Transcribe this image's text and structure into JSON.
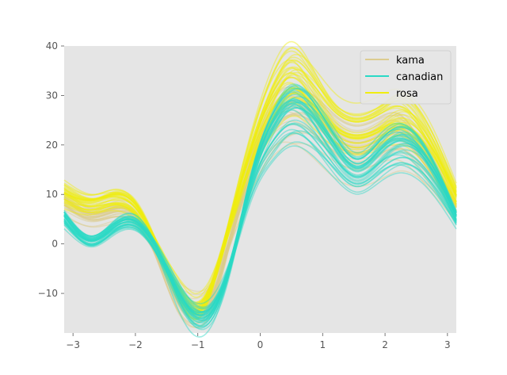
{
  "chart_data": {
    "type": "line",
    "description_kind": "andrews-curves",
    "xlim": [
      -3.14159,
      3.14159
    ],
    "ylim": [
      -18,
      40
    ],
    "x_ticks": [
      {
        "value": -3,
        "label": "−3"
      },
      {
        "value": -2,
        "label": "−2"
      },
      {
        "value": -1,
        "label": "−1"
      },
      {
        "value": 0,
        "label": "0"
      },
      {
        "value": 1,
        "label": "1"
      },
      {
        "value": 2,
        "label": "2"
      },
      {
        "value": 3,
        "label": "3"
      }
    ],
    "y_ticks": [
      {
        "value": -10,
        "label": "−10"
      },
      {
        "value": 0,
        "label": "0"
      },
      {
        "value": 10,
        "label": "10"
      },
      {
        "value": 20,
        "label": "20"
      },
      {
        "value": 30,
        "label": "30"
      },
      {
        "value": 40,
        "label": "40"
      }
    ],
    "grid": false,
    "background_color": "#e5e5e5",
    "legend_position": "top-right",
    "series": [
      {
        "name": "kama",
        "color": "#dccc8f",
        "x": [
          -3.14,
          -2.7,
          -2.3,
          -2.0,
          -1.6,
          -1.25,
          -1.05,
          -0.85,
          -0.5,
          -0.1,
          0.2,
          0.5,
          0.8,
          1.2,
          1.55,
          1.9,
          2.25,
          2.6,
          3.14
        ],
        "y": [
          8.5,
          5.5,
          6.5,
          5.2,
          -3.5,
          -11.5,
          -13.0,
          -11.8,
          0.0,
          16.5,
          24.0,
          26.5,
          25.0,
          20.0,
          18.0,
          19.5,
          21.0,
          17.0,
          7.0
        ]
      },
      {
        "name": "canadian",
        "color": "#2ad9c6",
        "x": [
          -3.14,
          -2.7,
          -2.3,
          -2.0,
          -1.6,
          -1.25,
          -1.05,
          -0.85,
          -0.5,
          -0.1,
          0.2,
          0.5,
          0.8,
          1.2,
          1.55,
          1.9,
          2.25,
          2.6,
          3.14
        ],
        "y": [
          5.0,
          0.5,
          3.5,
          4.0,
          -2.5,
          -11.0,
          -14.0,
          -14.0,
          -5.0,
          13.5,
          22.0,
          26.5,
          25.0,
          18.5,
          14.5,
          17.5,
          20.0,
          17.0,
          5.0
        ]
      },
      {
        "name": "rosa",
        "color": "#f0ee10",
        "x": [
          -3.14,
          -2.7,
          -2.3,
          -2.0,
          -1.6,
          -1.25,
          -1.05,
          -0.85,
          -0.5,
          -0.1,
          0.2,
          0.5,
          0.8,
          1.2,
          1.55,
          1.9,
          2.25,
          2.6,
          3.14
        ],
        "y": [
          10.0,
          8.0,
          9.0,
          7.0,
          -2.0,
          -10.5,
          -13.0,
          -10.5,
          3.5,
          20.0,
          29.0,
          33.5,
          30.5,
          24.0,
          22.0,
          23.5,
          25.5,
          22.0,
          9.5
        ]
      }
    ]
  }
}
